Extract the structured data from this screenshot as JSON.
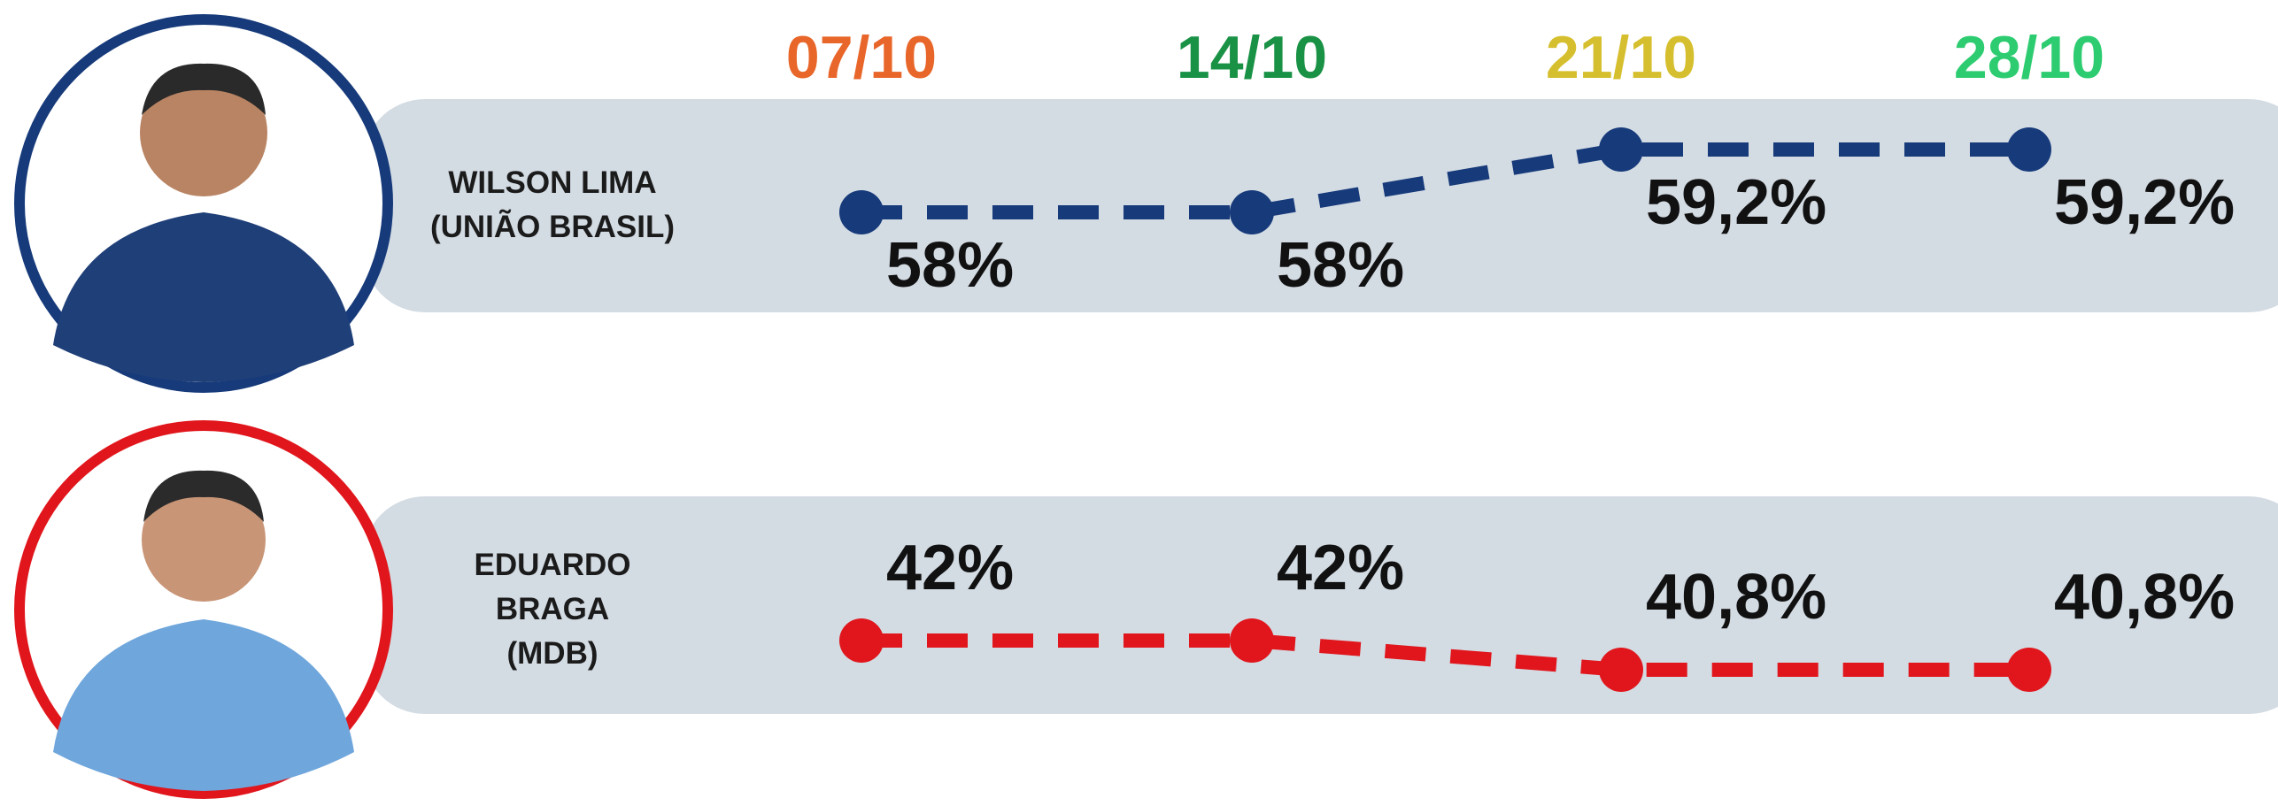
{
  "chart_data": {
    "type": "line",
    "categories": [
      "07/10",
      "14/10",
      "21/10",
      "28/10"
    ],
    "category_colors": [
      "#e8662a",
      "#1a9246",
      "#d6bf2e",
      "#2ecc71"
    ],
    "series": [
      {
        "name": "WILSON LIMA\n(UNIÃO BRASIL)",
        "color": "#163a7a",
        "values": [
          58,
          58,
          59.2,
          59.2
        ],
        "value_labels": [
          "58%",
          "58%",
          "59,2%",
          "59,2%"
        ]
      },
      {
        "name": "EDUARDO\nBRAGA\n(MDB)",
        "color": "#e0161c",
        "values": [
          42,
          42,
          40.8,
          40.8
        ],
        "value_labels": [
          "42%",
          "42%",
          "40,8%",
          "40,8%"
        ]
      }
    ]
  }
}
